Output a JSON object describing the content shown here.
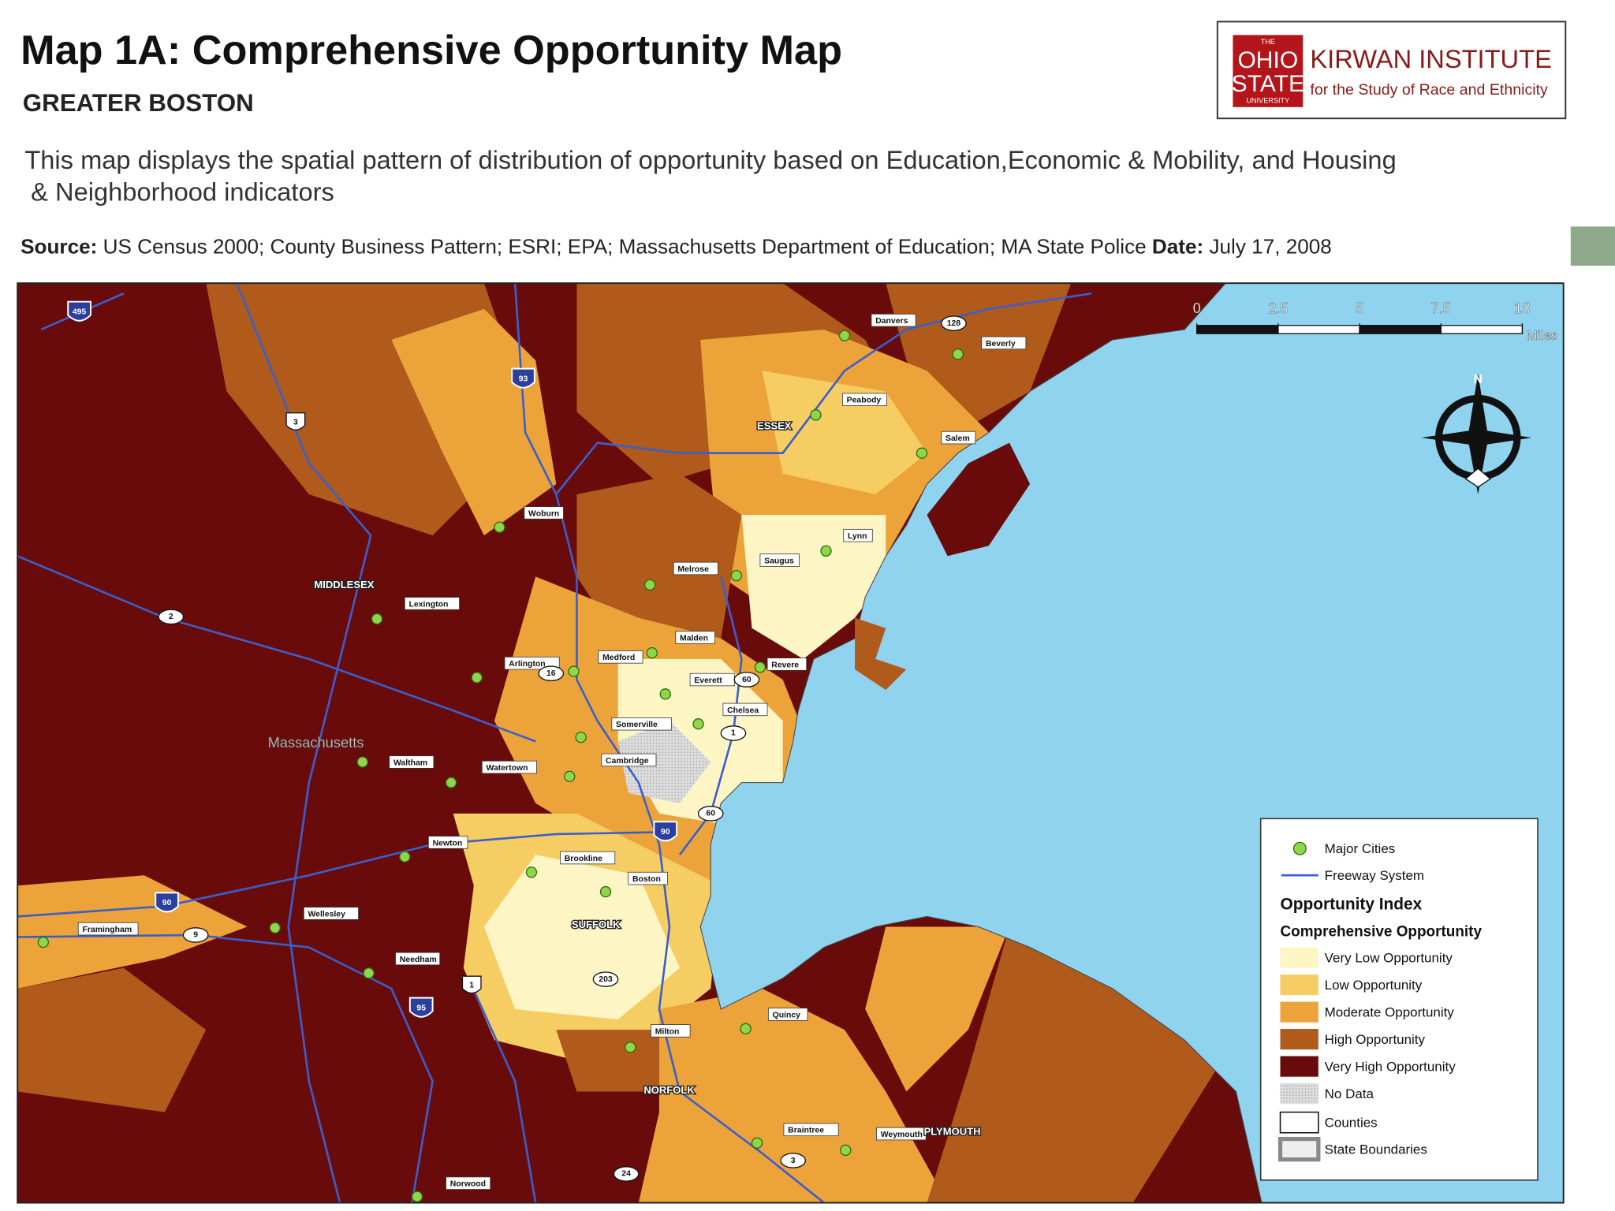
{
  "header": {
    "title": "Map 1A: Comprehensive Opportunity Map",
    "subtitle": "GREATER BOSTON",
    "description": [
      "This map displays the spatial pattern of distribution of opportunity based on Education,Economic & Mobility, and Housing",
      "& Neighborhood indicators"
    ],
    "source_label": "Source:",
    "source": "US Census 2000; County Business Pattern; ESRI; EPA; Massachusetts Department of Education; MA State Police",
    "date_label": "Date:",
    "date": "July 17, 2008"
  },
  "logo": {
    "the": "THE",
    "ohio": "OHIO",
    "state": "STATE",
    "university": "UNIVERSITY",
    "institute": "KIRWAN INSTITUTE",
    "tagline": "for the Study of Race and Ethnicity"
  },
  "map": {
    "cities": [
      "Danvers",
      "Beverly",
      "Peabody",
      "Salem",
      "Woburn",
      "Lynn",
      "Saugus",
      "Melrose",
      "Lexington",
      "Malden",
      "Arlington",
      "Medford",
      "Revere",
      "Everett",
      "Chelsea",
      "Somerville",
      "Waltham",
      "Watertown",
      "Cambridge",
      "Newton",
      "Brookline",
      "Boston",
      "Wellesley",
      "Framingham",
      "Needham",
      "Quincy",
      "Milton",
      "Braintree",
      "Weymouth",
      "Norwood"
    ],
    "counties": [
      "ESSEX",
      "MIDDLESEX",
      "SUFFOLK",
      "NORFOLK",
      "PLYMOUTH"
    ],
    "state_label": "Massachusetts",
    "highways": [
      "495",
      "93",
      "3",
      "128",
      "2",
      "16",
      "60",
      "1",
      "60",
      "90",
      "90",
      "9",
      "1",
      "203",
      "95",
      "24",
      "3"
    ],
    "scale": {
      "ticks": [
        0,
        2.5,
        5,
        7.5,
        10
      ],
      "unit": "Miles"
    },
    "north": "N"
  },
  "legend": {
    "cities": "Major Cities",
    "freeway": "Freeway System",
    "index_title": "Opportunity Index",
    "index_subtitle": "Comprehensive Opportunity",
    "classes": [
      "Very Low Opportunity",
      "Low Opportunity",
      "Moderate Opportunity",
      "High Opportunity",
      "Very High Opportunity",
      "No Data"
    ],
    "counties": "Counties",
    "state": "State Boundaries"
  }
}
